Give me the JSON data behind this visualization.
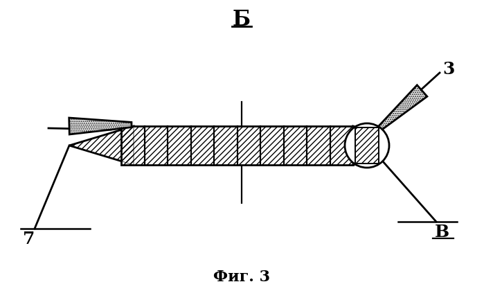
{
  "title": "Фиг. 3",
  "label_B": "Б",
  "label_3": "3",
  "label_7": "7",
  "label_V": "В",
  "bg_color": "#ffffff",
  "line_color": "#000000",
  "fig_width": 6.99,
  "fig_height": 4.2
}
